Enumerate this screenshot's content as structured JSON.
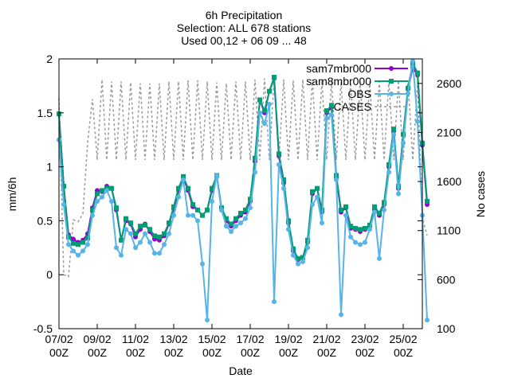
{
  "chart_data": {
    "type": "line",
    "title_lines": [
      "6h Precipitation",
      "Selection: ALL    678 stations",
      "Used 00,12 + 06 09 ... 48"
    ],
    "xlabel": "Date",
    "ylabel": "mm/6h",
    "y2label": "No cases",
    "ylim": [
      -0.5,
      2
    ],
    "y2lim": [
      100,
      2850
    ],
    "xlim": [
      0,
      76
    ],
    "yticks": [
      -0.5,
      0,
      0.5,
      1,
      1.5,
      2
    ],
    "ytick_labels": [
      "-0.5",
      "0",
      "0.5",
      "1",
      "1.5",
      "2"
    ],
    "y2ticks": [
      100,
      600,
      1100,
      1600,
      2100,
      2600
    ],
    "y2tick_labels": [
      "100",
      "600",
      "1100",
      "1600",
      "2100",
      "2600"
    ],
    "xticks": [
      0,
      8,
      16,
      24,
      32,
      40,
      48,
      56,
      64,
      72
    ],
    "xtick_labels": [
      [
        "07/02",
        "00Z"
      ],
      [
        "09/02",
        "00Z"
      ],
      [
        "11/02",
        "00Z"
      ],
      [
        "13/02",
        "00Z"
      ],
      [
        "15/02",
        "00Z"
      ],
      [
        "17/02",
        "00Z"
      ],
      [
        "19/02",
        "00Z"
      ],
      [
        "21/02",
        "00Z"
      ],
      [
        "23/02",
        "00Z"
      ],
      [
        "25/02",
        "00Z"
      ]
    ],
    "legend_position": "top-right",
    "series": [
      {
        "name": "sam7mbr000",
        "color": "#9400d3",
        "marker": "circle",
        "values": [
          1.49,
          0.82,
          0.37,
          0.33,
          0.3,
          0.32,
          0.38,
          0.62,
          0.78,
          0.77,
          0.82,
          0.8,
          0.6,
          0.32,
          0.5,
          0.47,
          0.35,
          0.42,
          0.47,
          0.4,
          0.33,
          0.32,
          0.36,
          0.47,
          0.61,
          0.78,
          0.9,
          0.78,
          0.63,
          0.6,
          0.55,
          0.6,
          0.78,
          0.92,
          0.6,
          0.5,
          0.45,
          0.5,
          0.55,
          0.58,
          0.68,
          1.05,
          1.62,
          1.5,
          1.7,
          1.82,
          1.1,
          0.85,
          0.48,
          0.22,
          0.14,
          0.15,
          0.3,
          0.75,
          0.8,
          0.58,
          1.5,
          1.55,
          0.9,
          0.58,
          0.62,
          0.43,
          0.42,
          0.4,
          0.42,
          0.45,
          0.6,
          0.55,
          0.65,
          1.0,
          1.33,
          0.8,
          1.3,
          1.72,
          1.92,
          1.85,
          1.2,
          0.65
        ]
      },
      {
        "name": "sam8mbr000",
        "color": "#009e73",
        "marker": "square",
        "values": [
          1.49,
          0.82,
          0.35,
          0.29,
          0.28,
          0.3,
          0.34,
          0.6,
          0.75,
          0.78,
          0.8,
          0.8,
          0.62,
          0.32,
          0.52,
          0.48,
          0.38,
          0.45,
          0.46,
          0.42,
          0.36,
          0.35,
          0.38,
          0.48,
          0.63,
          0.8,
          0.91,
          0.8,
          0.65,
          0.6,
          0.55,
          0.6,
          0.8,
          0.92,
          0.62,
          0.52,
          0.47,
          0.52,
          0.57,
          0.6,
          0.7,
          1.08,
          1.62,
          1.52,
          1.7,
          1.83,
          1.12,
          0.88,
          0.5,
          0.24,
          0.15,
          0.16,
          0.32,
          0.77,
          0.8,
          0.6,
          1.52,
          1.57,
          0.92,
          0.6,
          0.63,
          0.45,
          0.43,
          0.42,
          0.43,
          0.46,
          0.63,
          0.57,
          0.67,
          1.02,
          1.35,
          0.82,
          1.3,
          1.73,
          1.96,
          1.87,
          1.22,
          0.68
        ]
      },
      {
        "name": "OBS",
        "color": "#56b4e9",
        "marker": "circle",
        "values": [
          1.25,
          0.65,
          0.28,
          0.22,
          0.18,
          0.22,
          0.28,
          0.55,
          0.68,
          0.72,
          0.78,
          0.68,
          0.25,
          0.18,
          0.42,
          0.38,
          0.25,
          0.3,
          0.38,
          0.3,
          0.2,
          0.2,
          0.28,
          0.38,
          0.55,
          0.72,
          0.88,
          0.55,
          0.55,
          0.5,
          0.1,
          -0.42,
          0.68,
          0.92,
          0.6,
          0.45,
          0.4,
          0.45,
          0.48,
          0.52,
          0.62,
          0.95,
          1.5,
          1.4,
          1.58,
          -0.25,
          1.02,
          0.8,
          0.42,
          0.18,
          0.1,
          0.12,
          0.25,
          0.65,
          0.72,
          0.48,
          1.45,
          1.48,
          0.88,
          -0.37,
          0.55,
          0.35,
          0.3,
          0.28,
          0.3,
          0.42,
          0.58,
          0.15,
          0.6,
          0.95,
          1.3,
          0.75,
          1.22,
          1.68,
          1.98,
          1.42,
          0.55,
          -0.42
        ]
      },
      {
        "name": "CASES",
        "color": "#999999",
        "axis": "y2",
        "style": "dashed",
        "values": [
          2450,
          650,
          630,
          1210,
          1190,
          1270,
          2000,
          2440,
          1820,
          2640,
          1820,
          2620,
          1820,
          2620,
          1820,
          2610,
          1820,
          2600,
          1820,
          2600,
          1820,
          2600,
          1820,
          2620,
          1820,
          2620,
          1820,
          2630,
          1820,
          2630,
          1820,
          2620,
          1820,
          2610,
          1820,
          2600,
          1820,
          2620,
          1820,
          2620,
          1820,
          2640,
          1820,
          2650,
          1820,
          2650,
          1820,
          2640,
          1820,
          2630,
          1820,
          2640,
          1820,
          2640,
          1820,
          2630,
          1820,
          2620,
          1820,
          2620,
          1820,
          2610,
          1820,
          2620,
          1820,
          2620,
          1820,
          2620,
          1820,
          2630,
          1820,
          2630,
          1820,
          2630,
          1820,
          2610,
          1230,
          1050
        ]
      }
    ]
  }
}
